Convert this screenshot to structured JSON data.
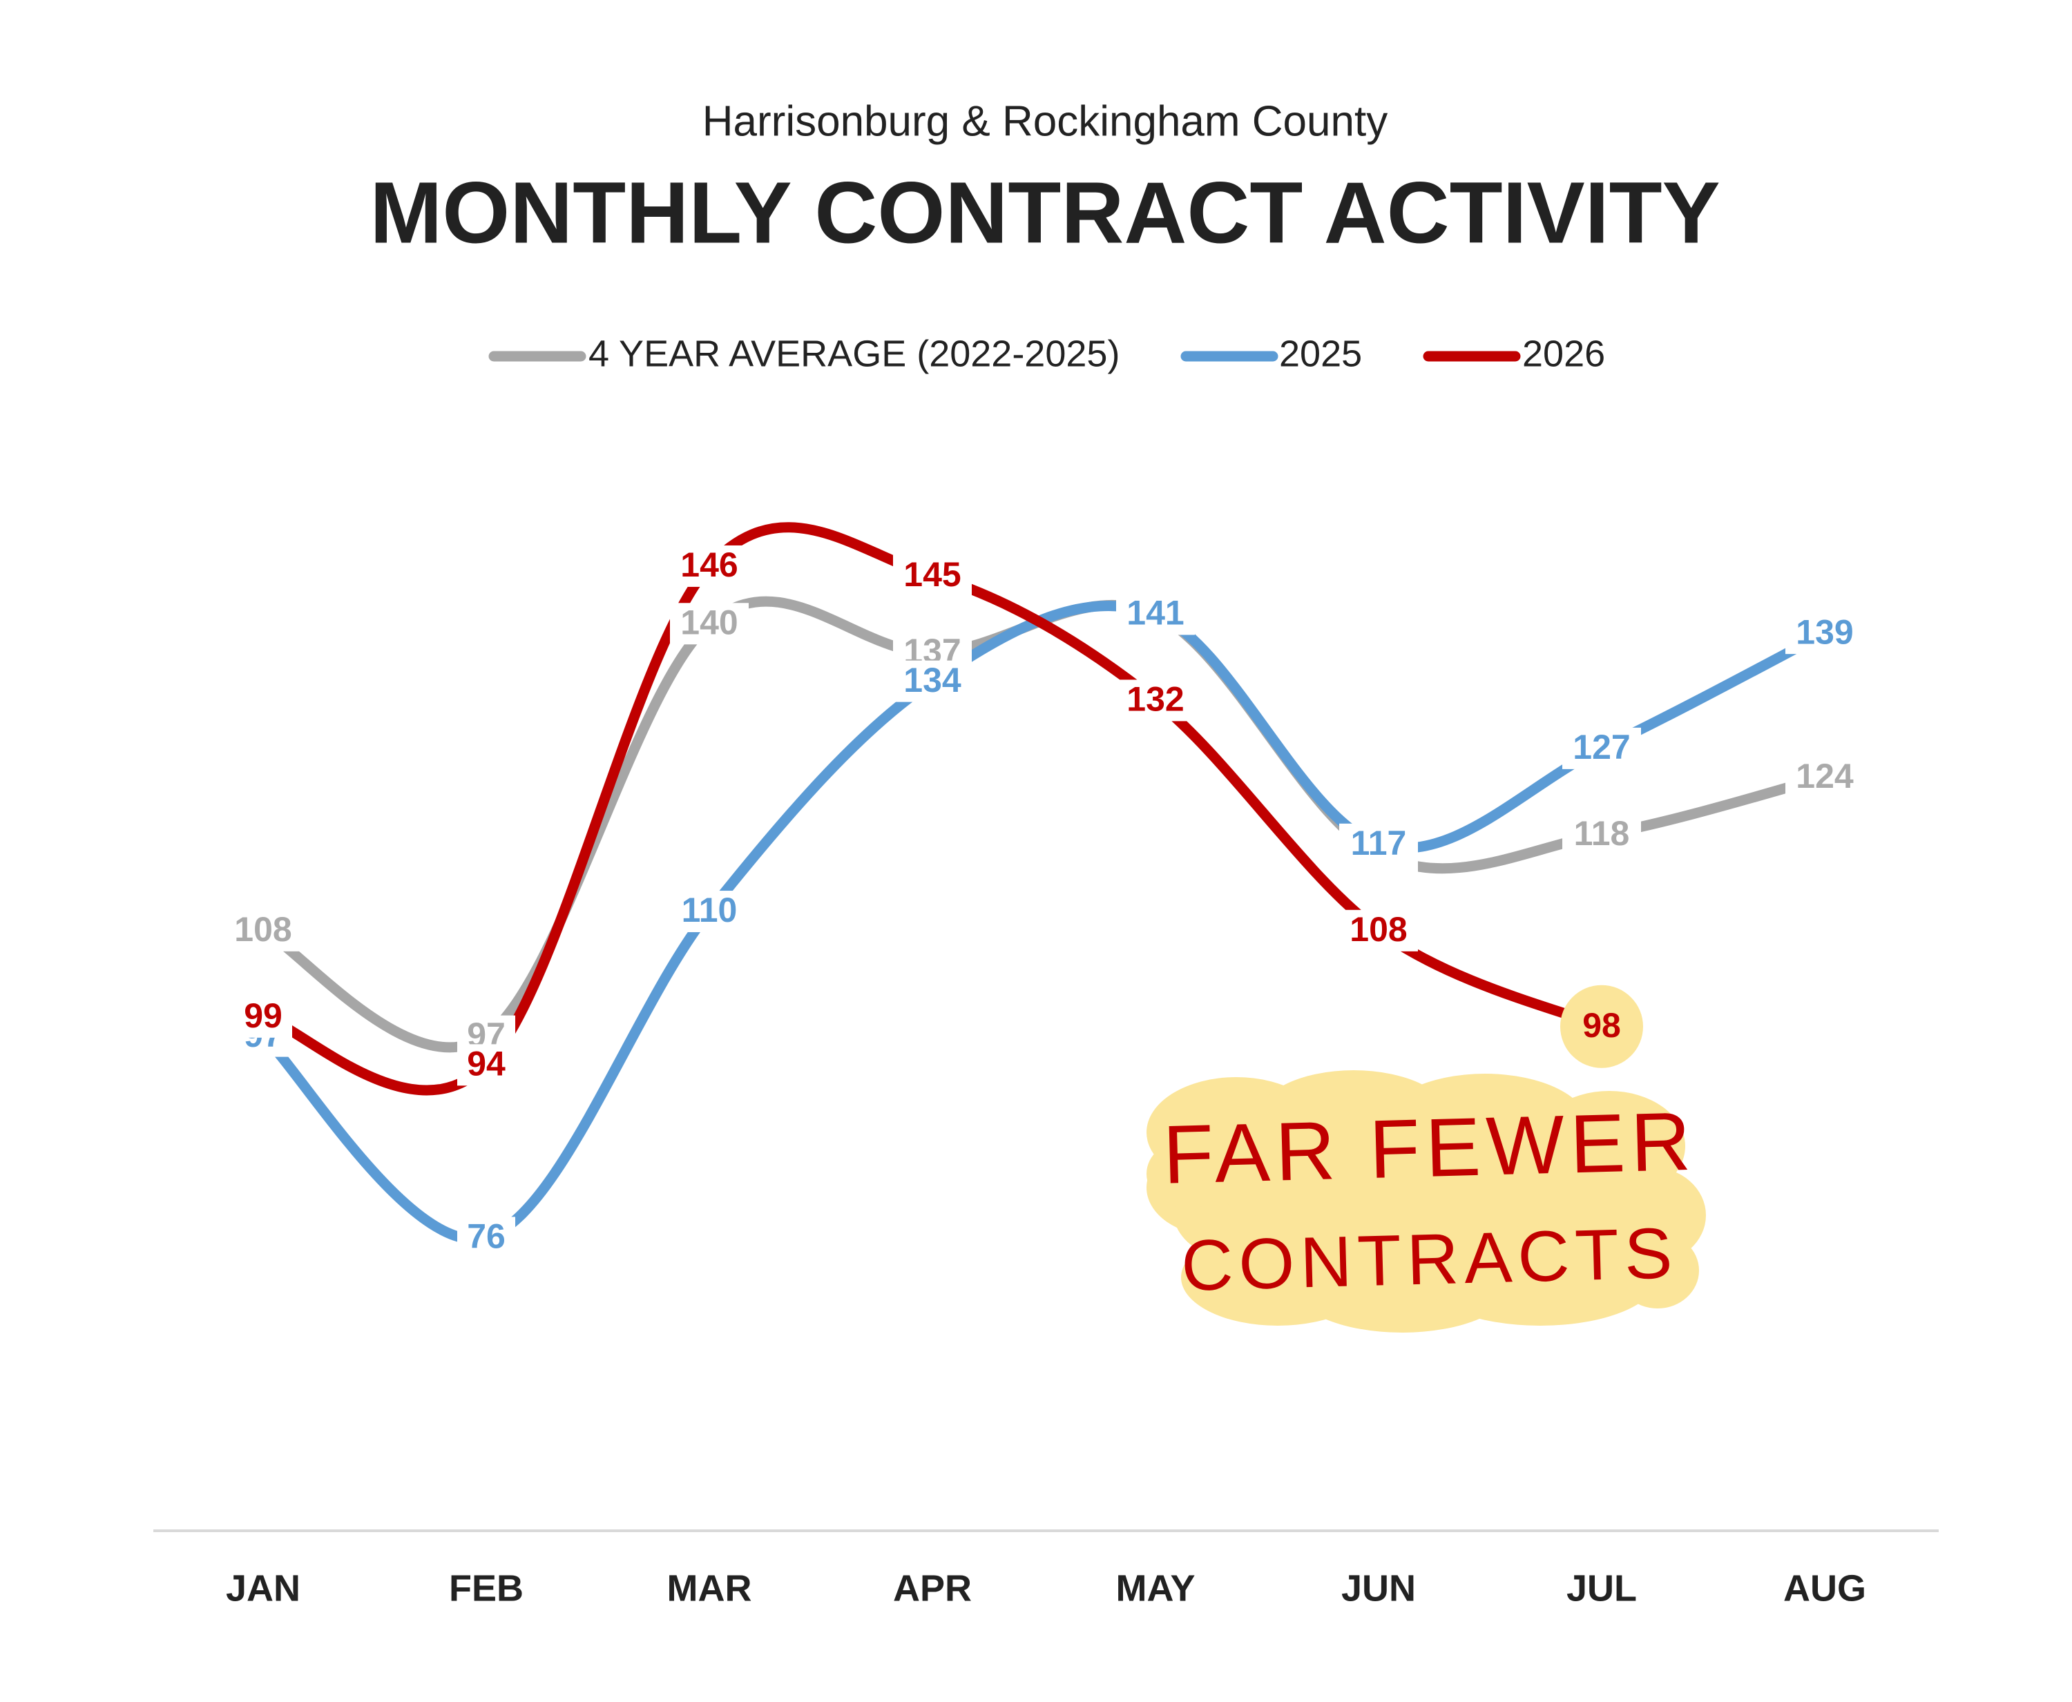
{
  "chart_data": {
    "type": "line",
    "subtitle": "Harrisonburg & Rockingham County",
    "title": "MONTHLY CONTRACT ACTIVITY",
    "categories": [
      "JAN",
      "FEB",
      "MAR",
      "APR",
      "MAY",
      "JUN",
      "JUL",
      "AUG"
    ],
    "series": [
      {
        "name": "4 YEAR AVERAGE (2022-2025)",
        "color": "#a6a6a6",
        "label_color": "#aaaaaa",
        "values": [
          108,
          97,
          140,
          137,
          141,
          116,
          118,
          124
        ]
      },
      {
        "name": "2025",
        "color": "#5b9bd5",
        "label_color": "#5b9bd5",
        "values": [
          97,
          76,
          110,
          134,
          141,
          117,
          127,
          139
        ]
      },
      {
        "name": "2026",
        "color": "#c00000",
        "label_color": "#c00000",
        "values": [
          99,
          94,
          146,
          145,
          132,
          108,
          98,
          null
        ]
      }
    ],
    "ylim": [
      45,
      165
    ],
    "smooth": true,
    "annotation": [
      "FAR FEWER",
      "CONTRACTS"
    ],
    "annotation_color": "#c00000",
    "highlight_color": "#fbe59a"
  }
}
